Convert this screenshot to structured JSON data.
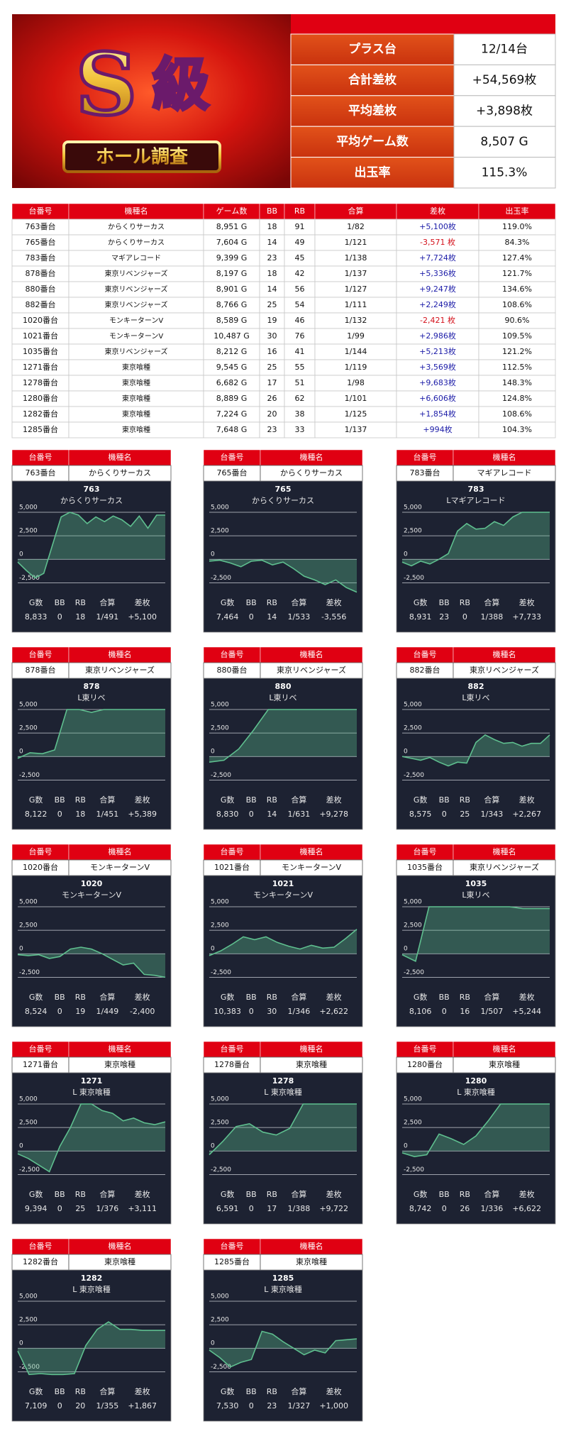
{
  "logo": {
    "letter": "S",
    "kanji": "級",
    "banner": "ホール調査"
  },
  "header": {
    "rows": [
      {
        "label": "プラス台",
        "value": "12/14台"
      },
      {
        "label": "合計差枚",
        "value": "+54,569枚"
      },
      {
        "label": "平均差枚",
        "value": "+3,898枚"
      },
      {
        "label": "平均ゲーム数",
        "value": "8,507 G"
      },
      {
        "label": "出玉率",
        "value": "115.3%"
      }
    ]
  },
  "table": {
    "columns": [
      "台番号",
      "機種名",
      "ゲーム数",
      "BB",
      "RB",
      "合算",
      "差枚",
      "出玉率"
    ],
    "rows": [
      [
        "763番台",
        "からくりサーカス",
        "8,951 G",
        "18",
        "91",
        "1/82",
        "+5,100枚",
        "119.0%"
      ],
      [
        "765番台",
        "からくりサーカス",
        "7,604 G",
        "14",
        "49",
        "1/121",
        "-3,571 枚",
        "84.3%"
      ],
      [
        "783番台",
        "マギアレコード",
        "9,399 G",
        "23",
        "45",
        "1/138",
        "+7,724枚",
        "127.4%"
      ],
      [
        "878番台",
        "東京リベンジャーズ",
        "8,197 G",
        "18",
        "42",
        "1/137",
        "+5,336枚",
        "121.7%"
      ],
      [
        "880番台",
        "東京リベンジャーズ",
        "8,901 G",
        "14",
        "56",
        "1/127",
        "+9,247枚",
        "134.6%"
      ],
      [
        "882番台",
        "東京リベンジャーズ",
        "8,766 G",
        "25",
        "54",
        "1/111",
        "+2,249枚",
        "108.6%"
      ],
      [
        "1020番台",
        "モンキーターンV",
        "8,589 G",
        "19",
        "46",
        "1/132",
        "-2,421 枚",
        "90.6%"
      ],
      [
        "1021番台",
        "モンキーターンV",
        "10,487 G",
        "30",
        "76",
        "1/99",
        "+2,986枚",
        "109.5%"
      ],
      [
        "1035番台",
        "東京リベンジャーズ",
        "8,212 G",
        "16",
        "41",
        "1/144",
        "+5,213枚",
        "121.2%"
      ],
      [
        "1271番台",
        "東京喰種",
        "9,545 G",
        "25",
        "55",
        "1/119",
        "+3,569枚",
        "112.5%"
      ],
      [
        "1278番台",
        "東京喰種",
        "6,682 G",
        "17",
        "51",
        "1/98",
        "+9,683枚",
        "148.3%"
      ],
      [
        "1280番台",
        "東京喰種",
        "8,889 G",
        "26",
        "62",
        "1/101",
        "+6,606枚",
        "124.8%"
      ],
      [
        "1282番台",
        "東京喰種",
        "7,224 G",
        "20",
        "38",
        "1/125",
        "+1,854枚",
        "108.6%"
      ],
      [
        "1285番台",
        "東京喰種",
        "7,648 G",
        "23",
        "33",
        "1/137",
        "+994枚",
        "104.3%"
      ]
    ]
  },
  "card_labels": [
    "台番号",
    "機種名"
  ],
  "stat_labels": [
    "G数",
    "BB",
    "RB",
    "合算",
    "差枚"
  ],
  "chart_data": [
    {
      "type": "line",
      "title": "763",
      "subtitle": "からくりサーカス",
      "card": [
        "763番台",
        "からくりサーカス"
      ],
      "stats": [
        "8,833",
        "0",
        "18",
        "1/491",
        "+5,100"
      ],
      "color": "#5fbf8f",
      "values": [
        -300,
        -1200,
        -2000,
        -1500,
        1500,
        4500,
        5000,
        4700,
        3800,
        4500,
        4000,
        4600,
        4200,
        3500,
        4600,
        3300,
        4700,
        4700
      ],
      "ylim": [
        -3000,
        5300
      ],
      "yticks": [
        {
          "value": 5000,
          "label": "5,000"
        },
        {
          "value": 2500,
          "label": "2,500"
        },
        0,
        {
          "value": -2500,
          "label": "-2,500"
        }
      ]
    },
    {
      "type": "line",
      "title": "765",
      "subtitle": "からくりサーカス",
      "card": [
        "765番台",
        "からくりサーカス"
      ],
      "stats": [
        "7,464",
        "0",
        "14",
        "1/533",
        "-3,556"
      ],
      "color": "#5fbf8f",
      "values": [
        -200,
        -100,
        -400,
        -800,
        -200,
        -100,
        -600,
        -300,
        -1000,
        -1800,
        -2200,
        -2700,
        -2200,
        -3000,
        -3500
      ],
      "ylim": [
        -3000,
        5300
      ],
      "yticks": [
        {
          "value": 5000,
          "label": "5,000"
        },
        {
          "value": 2500,
          "label": "2,500"
        },
        0,
        {
          "value": -2500,
          "label": "-2,500"
        }
      ]
    },
    {
      "type": "line",
      "title": "783",
      "subtitle": "Lマギアレコード",
      "card": [
        "783番台",
        "マギアレコード"
      ],
      "stats": [
        "8,931",
        "23",
        "0",
        "1/388",
        "+7,733"
      ],
      "color": "#5fbf8f",
      "values": [
        -300,
        -700,
        -200,
        -500,
        0,
        600,
        3000,
        3800,
        3200,
        3300,
        4000,
        3600,
        4500,
        5000,
        5000,
        5000,
        5000
      ],
      "ylim": [
        -3000,
        5300
      ],
      "yticks": [
        {
          "value": 5000,
          "label": "5,000"
        },
        {
          "value": 2500,
          "label": "2,500"
        },
        0,
        {
          "value": -2500,
          "label": "-2,500"
        }
      ]
    },
    {
      "type": "line",
      "title": "878",
      "subtitle": "L東リベ",
      "card": [
        "878番台",
        "東京リベンジャーズ"
      ],
      "stats": [
        "8,122",
        "0",
        "18",
        "1/451",
        "+5,389"
      ],
      "color": "#5fbf8f",
      "values": [
        -200,
        400,
        300,
        700,
        5000,
        5000,
        4700,
        5000,
        5000,
        5000,
        5000,
        5000,
        5000
      ],
      "ylim": [
        -3000,
        5300
      ],
      "yticks": [
        {
          "value": 5000,
          "label": "5,000"
        },
        {
          "value": 2500,
          "label": "2,500"
        },
        0,
        {
          "value": -2500,
          "label": "-2,500"
        }
      ]
    },
    {
      "type": "line",
      "title": "880",
      "subtitle": "L東リベ",
      "card": [
        "880番台",
        "東京リベンジャーズ"
      ],
      "stats": [
        "8,830",
        "0",
        "14",
        "1/631",
        "+9,278"
      ],
      "color": "#5fbf8f",
      "values": [
        -600,
        -400,
        800,
        2800,
        5000,
        5000,
        5000,
        5000,
        5000,
        5000,
        5000
      ],
      "ylim": [
        -3000,
        5300
      ],
      "yticks": [
        {
          "value": 5000,
          "label": "5,000"
        },
        {
          "value": 2500,
          "label": "2,500"
        },
        0,
        {
          "value": -2500,
          "label": "-2,500"
        }
      ]
    },
    {
      "type": "line",
      "title": "882",
      "subtitle": "L東リベ",
      "card": [
        "882番台",
        "東京リベンジャーズ"
      ],
      "stats": [
        "8,575",
        "0",
        "25",
        "1/343",
        "+2,267"
      ],
      "color": "#5fbf8f",
      "values": [
        0,
        -200,
        -400,
        -100,
        -600,
        -1000,
        -600,
        -700,
        1500,
        2300,
        1800,
        1400,
        1500,
        1100,
        1400,
        1400,
        2300
      ],
      "ylim": [
        -3000,
        5300
      ],
      "yticks": [
        {
          "value": 5000,
          "label": "5,000"
        },
        {
          "value": 2500,
          "label": "2,500"
        },
        0,
        {
          "value": -2500,
          "label": "-2,500"
        }
      ]
    },
    {
      "type": "line",
      "title": "1020",
      "subtitle": "モンキーターンV",
      "card": [
        "1020番台",
        "モンキーターンV"
      ],
      "stats": [
        "8,524",
        "0",
        "19",
        "1/449",
        "-2,400"
      ],
      "color": "#5fbf8f",
      "values": [
        -100,
        -200,
        -100,
        -500,
        -300,
        500,
        700,
        500,
        0,
        -600,
        -1200,
        -1000,
        -2200,
        -2300,
        -2500
      ],
      "ylim": [
        -3000,
        5300
      ],
      "yticks": [
        {
          "value": 5000,
          "label": "5,000"
        },
        {
          "value": 2500,
          "label": "2,500"
        },
        0,
        {
          "value": -2500,
          "label": "-2,500"
        }
      ]
    },
    {
      "type": "line",
      "title": "1021",
      "subtitle": "モンキーターンV",
      "card": [
        "1021番台",
        "モンキーターンV"
      ],
      "stats": [
        "10,383",
        "0",
        "30",
        "1/346",
        "+2,622"
      ],
      "color": "#5fbf8f",
      "values": [
        -200,
        300,
        1000,
        1800,
        1500,
        1800,
        1200,
        800,
        500,
        900,
        600,
        700,
        1600,
        2600
      ],
      "ylim": [
        -3000,
        5300
      ],
      "yticks": [
        {
          "value": 5000,
          "label": "5,000"
        },
        {
          "value": 2500,
          "label": "2,500"
        },
        0,
        {
          "value": -2500,
          "label": "-2,500"
        }
      ]
    },
    {
      "type": "line",
      "title": "1035",
      "subtitle": "L東リベ",
      "card": [
        "1035番台",
        "東京リベンジャーズ"
      ],
      "stats": [
        "8,106",
        "0",
        "16",
        "1/507",
        "+5,244"
      ],
      "color": "#5fbf8f",
      "values": [
        -100,
        -800,
        5000,
        5000,
        5000,
        5000,
        5000,
        5000,
        5000,
        4800,
        4800,
        4800
      ],
      "ylim": [
        -3000,
        5300
      ],
      "yticks": [
        {
          "value": 5000,
          "label": "5,000"
        },
        {
          "value": 2500,
          "label": "2,500"
        },
        0,
        {
          "value": -2500,
          "label": "-2,500"
        }
      ]
    },
    {
      "type": "line",
      "title": "1271",
      "subtitle": "L 東京喰種",
      "card": [
        "1271番台",
        "東京喰種"
      ],
      "stats": [
        "9,394",
        "0",
        "25",
        "1/376",
        "+3,111"
      ],
      "color": "#5fbf8f",
      "values": [
        -300,
        -800,
        -1500,
        -2200,
        500,
        2500,
        5000,
        5000,
        4300,
        4000,
        3200,
        3500,
        3000,
        2800,
        3100
      ],
      "ylim": [
        -3000,
        5300
      ],
      "yticks": [
        {
          "value": 5000,
          "label": "5,000"
        },
        {
          "value": 2500,
          "label": "2,500"
        },
        0,
        {
          "value": -2500,
          "label": "-2,500"
        }
      ]
    },
    {
      "type": "line",
      "title": "1278",
      "subtitle": "L 東京喰種",
      "card": [
        "1278番台",
        "東京喰種"
      ],
      "stats": [
        "6,591",
        "0",
        "17",
        "1/388",
        "+9,722"
      ],
      "color": "#5fbf8f",
      "values": [
        -400,
        1000,
        2600,
        2900,
        2000,
        1700,
        2400,
        5000,
        5000,
        5000,
        5000,
        5000
      ],
      "ylim": [
        -3000,
        5300
      ],
      "yticks": [
        {
          "value": 5000,
          "label": "5,000"
        },
        {
          "value": 2500,
          "label": "2,500"
        },
        0,
        {
          "value": -2500,
          "label": "-2,500"
        }
      ]
    },
    {
      "type": "line",
      "title": "1280",
      "subtitle": "L 東京喰種",
      "card": [
        "1280番台",
        "東京喰種"
      ],
      "stats": [
        "8,742",
        "0",
        "26",
        "1/336",
        "+6,622"
      ],
      "color": "#5fbf8f",
      "values": [
        -200,
        -600,
        -400,
        1800,
        1300,
        700,
        1600,
        3200,
        5000,
        5000,
        5000,
        5000,
        5000
      ],
      "ylim": [
        -3000,
        5300
      ],
      "yticks": [
        {
          "value": 5000,
          "label": "5,000"
        },
        {
          "value": 2500,
          "label": "2,500"
        },
        0,
        {
          "value": -2500,
          "label": "-2,500"
        }
      ]
    },
    {
      "type": "line",
      "title": "1282",
      "subtitle": "L 東京喰種",
      "card": [
        "1282番台",
        "東京喰種"
      ],
      "stats": [
        "7,109",
        "0",
        "20",
        "1/355",
        "+1,867"
      ],
      "color": "#5fbf8f",
      "values": [
        -300,
        -2800,
        -2700,
        -2800,
        -2800,
        -2700,
        300,
        2000,
        2800,
        2000,
        2000,
        1900,
        1900,
        1900
      ],
      "ylim": [
        -3000,
        5300
      ],
      "yticks": [
        {
          "value": 5000,
          "label": "5,000"
        },
        {
          "value": 2500,
          "label": "2,500"
        },
        0,
        {
          "value": -2500,
          "label": "-2,500"
        }
      ]
    },
    {
      "type": "line",
      "title": "1285",
      "subtitle": "L 東京喰種",
      "card": [
        "1285番台",
        "東京喰種"
      ],
      "stats": [
        "7,530",
        "0",
        "23",
        "1/327",
        "+1,000"
      ],
      "color": "#5fbf8f",
      "values": [
        -200,
        -1000,
        -2000,
        -1500,
        -1200,
        1800,
        1500,
        700,
        0,
        -700,
        -200,
        -500,
        800,
        900,
        1000
      ],
      "ylim": [
        -3000,
        5300
      ],
      "yticks": [
        {
          "value": 5000,
          "label": "5,000"
        },
        {
          "value": 2500,
          "label": "2,500"
        },
        0,
        {
          "value": -2500,
          "label": "-2,500"
        }
      ]
    }
  ]
}
